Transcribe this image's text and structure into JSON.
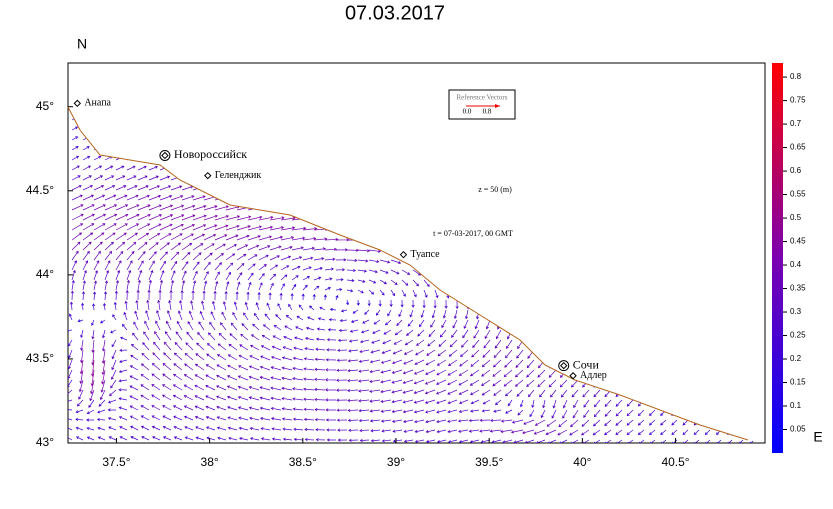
{
  "title": "07.03.2017",
  "map": {
    "x_label": "E",
    "y_label": "N",
    "xlim": [
      37.24,
      40.98
    ],
    "ylim": [
      43.0,
      45.26
    ],
    "xticks": [
      {
        "value": 37.5,
        "label": "37.5°"
      },
      {
        "value": 38,
        "label": "38°"
      },
      {
        "value": 38.5,
        "label": "38.5°"
      },
      {
        "value": 39,
        "label": "39°"
      },
      {
        "value": 39.5,
        "label": "39.5°"
      },
      {
        "value": 40,
        "label": "40°"
      },
      {
        "value": 40.5,
        "label": "40.5°"
      }
    ],
    "yticks": [
      {
        "value": 43,
        "label": "43°"
      },
      {
        "value": 43.5,
        "label": "43.5°"
      },
      {
        "value": 44,
        "label": "44°"
      },
      {
        "value": 44.5,
        "label": "44.5°"
      },
      {
        "value": 45,
        "label": "45°"
      }
    ],
    "cities": [
      {
        "name": "Анапа",
        "lon": 37.29,
        "lat": 45.02
      },
      {
        "name": "Новороссийск",
        "lon": 37.76,
        "lat": 44.71
      },
      {
        "name": "Геленджик",
        "lon": 37.99,
        "lat": 44.59
      },
      {
        "name": "Туапсе",
        "lon": 39.04,
        "lat": 44.12
      },
      {
        "name": "Сочи",
        "lon": 39.9,
        "lat": 43.46
      },
      {
        "name": "Адлер",
        "lon": 39.95,
        "lat": 43.4
      }
    ],
    "depth_label": "z = 50 (m)",
    "time_label": "t = 07-03-2017, 00 GMT",
    "reference": {
      "title": "Reference Vectors",
      "labels": [
        "0.0",
        "0.8"
      ]
    }
  },
  "colorbar": {
    "lim": [
      0,
      0.83
    ],
    "ticks": [
      0.05,
      0.1,
      0.15,
      0.2,
      0.25,
      0.3,
      0.35,
      0.4,
      0.45,
      0.5,
      0.55,
      0.6,
      0.65,
      0.7,
      0.75,
      0.8
    ]
  }
}
